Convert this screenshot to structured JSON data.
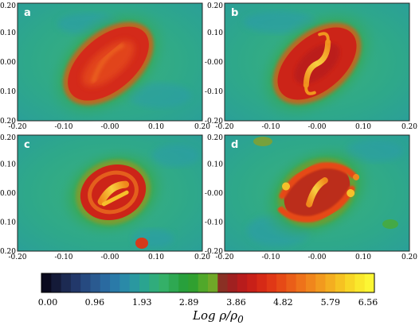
{
  "chart_data": [
    {
      "type": "heatmap",
      "panel": "a",
      "xlim": [
        -0.2,
        0.2
      ],
      "ylim": [
        -0.2,
        0.2
      ],
      "x_ticks": [
        "-0.20",
        "-0.10",
        "-0.00",
        "0.10",
        "0.20"
      ],
      "y_ticks": [
        "0.10",
        "-0.00",
        "-0.10",
        "-0.20"
      ],
      "y_ticks_top": "0.20",
      "feature": {
        "disk_angle_deg": -40,
        "bar": false,
        "peak_log_density": 3.86
      }
    },
    {
      "type": "heatmap",
      "panel": "b",
      "xlim": [
        -0.2,
        0.2
      ],
      "ylim": [
        -0.2,
        0.2
      ],
      "x_ticks": [
        "-0.20",
        "-0.10",
        "-0.00",
        "0.10",
        "0.20"
      ],
      "y_ticks": [
        "0.10",
        "-0.00",
        "-0.10",
        "-0.20"
      ],
      "y_ticks_top": "0.20",
      "feature": {
        "disk_angle_deg": -40,
        "bar": true,
        "peak_log_density": 4.82
      }
    },
    {
      "type": "heatmap",
      "panel": "c",
      "xlim": [
        -0.2,
        0.2
      ],
      "ylim": [
        -0.2,
        0.2
      ],
      "x_ticks": [
        "-0.20",
        "-0.10",
        "-0.00",
        "0.10",
        "0.20"
      ],
      "y_ticks": [
        "0.10",
        "-0.00",
        "-0.10",
        "-0.20"
      ],
      "y_ticks_top": "0.20",
      "feature": {
        "disk_angle_deg": -20,
        "bar": true,
        "peak_log_density": 5.79
      }
    },
    {
      "type": "heatmap",
      "panel": "d",
      "xlim": [
        -0.2,
        0.2
      ],
      "ylim": [
        -0.2,
        0.2
      ],
      "x_ticks": [
        "-0.20",
        "-0.10",
        "-0.00",
        "0.10",
        "0.20"
      ],
      "y_ticks": [
        "0.10",
        "-0.00",
        "-0.10",
        "-0.20"
      ],
      "y_ticks_top": "0.20",
      "feature": {
        "disk_angle_deg": -30,
        "bar": true,
        "peak_log_density": 5.79
      }
    }
  ],
  "colorbar": {
    "ticks": [
      "0.00",
      "0.96",
      "1.93",
      "2.89",
      "3.86",
      "4.82",
      "5.79",
      "6.56"
    ],
    "label_main": "Log ρ/ρ",
    "label_sub": "0",
    "colors": [
      "#0a0a1e",
      "#141a38",
      "#1c2a52",
      "#22386a",
      "#264a80",
      "#2a5a90",
      "#2a6aa0",
      "#2a7aa8",
      "#2a8aa8",
      "#2a98a0",
      "#2aa490",
      "#30ac7c",
      "#34b068",
      "#2ea852",
      "#28a03c",
      "#30a030",
      "#50a82a",
      "#70a828",
      "#8a3024",
      "#a02020",
      "#b81c1c",
      "#c82018",
      "#d62a16",
      "#e03816",
      "#e64a16",
      "#ea5e18",
      "#ee721a",
      "#f0861c",
      "#f29a1e",
      "#f4ae20",
      "#f6c222",
      "#f8d626",
      "#fae82c",
      "#fcf634"
    ]
  }
}
